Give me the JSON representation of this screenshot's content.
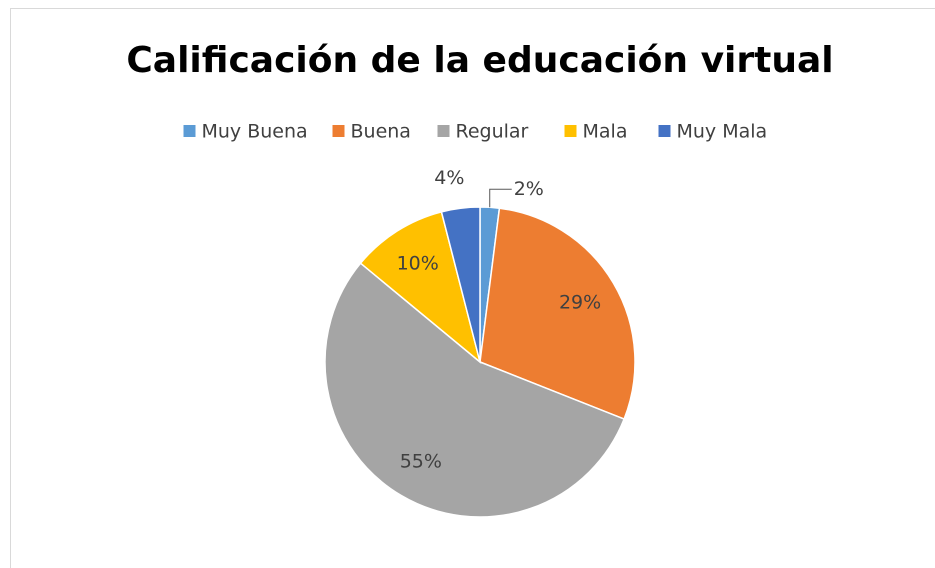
{
  "chart_data": {
    "type": "pie",
    "title": "Calificación de la educación virtual",
    "categories": [
      "Muy Buena",
      "Buena",
      "Regular",
      "Mala",
      "Muy Mala"
    ],
    "values": [
      2,
      29,
      55,
      10,
      4
    ],
    "value_labels": [
      "2%",
      "29%",
      "55%",
      "10%",
      "4%"
    ],
    "colors": [
      "#5b9bd5",
      "#ed7d31",
      "#a5a5a5",
      "#ffc000",
      "#4472c4"
    ],
    "legend": "top"
  }
}
